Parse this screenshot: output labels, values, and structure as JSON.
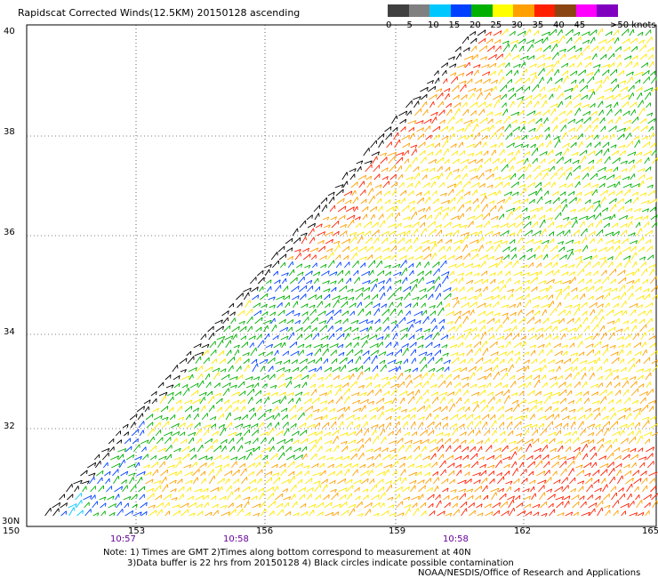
{
  "title": "Rapidscat Corrected Winds(12.5KM) 20150128 ascending",
  "legend": {
    "bins": [
      {
        "label": "0",
        "color": "#404040"
      },
      {
        "label": "5",
        "color": "#808080"
      },
      {
        "label": "10",
        "color": "#00c8ff"
      },
      {
        "label": "15",
        "color": "#0040ff"
      },
      {
        "label": "20",
        "color": "#00b000"
      },
      {
        "label": "25",
        "color": "#ffff00"
      },
      {
        "label": "30",
        "color": "#ffa000"
      },
      {
        "label": "35",
        "color": "#ff2000"
      },
      {
        "label": "40",
        "color": "#8b4513"
      },
      {
        "label": "45",
        "color": "#ff00ff"
      },
      {
        "label": "",
        "color": "#8000c0"
      }
    ],
    "last_label": ">50 knots"
  },
  "axes": {
    "y_ticks": [
      "40",
      "38",
      "36",
      "34",
      "32",
      "30N"
    ],
    "x_ticks": [
      "150",
      "153",
      "156",
      "159",
      "162",
      "165"
    ],
    "times": [
      "10:57",
      "10:58",
      "10:58"
    ]
  },
  "notes": [
    "Note: 1) Times are GMT 2)Times along bottom correspond to measurement at 40N",
    "3)Data buffer is 22 hrs from 20150128 4) Black circles indicate possible contamination"
  ],
  "credit": "NOAA/NESDIS/Office of Research and Applications"
}
